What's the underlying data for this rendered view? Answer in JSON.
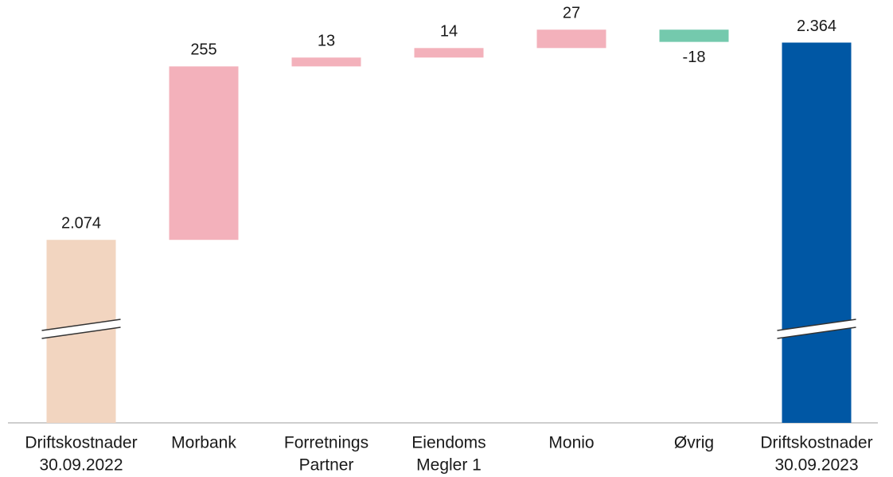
{
  "chart_data": {
    "type": "waterfall",
    "categories": [
      [
        "Driftskostnader",
        "30.09.2022"
      ],
      [
        "Morbank"
      ],
      [
        "Forretnings",
        "Partner"
      ],
      [
        "Eiendoms",
        "Megler 1"
      ],
      [
        "Monio"
      ],
      [
        "Øvrig"
      ],
      [
        "Driftskostnader",
        "30.09.2023"
      ]
    ],
    "values": [
      2074,
      255,
      13,
      14,
      27,
      -18,
      2364
    ],
    "value_labels": [
      "2.074",
      "255",
      "13",
      "14",
      "27",
      "-18",
      "2.364"
    ],
    "totals": [
      true,
      false,
      false,
      false,
      false,
      false,
      true
    ],
    "colors": [
      "#f2d5c0",
      "#f3b1bb",
      "#f3b1bb",
      "#f3b1bb",
      "#f3b1bb",
      "#74c9ad",
      "#0057a4"
    ],
    "ylim": [
      1805,
      2395
    ],
    "axis_break": true
  }
}
